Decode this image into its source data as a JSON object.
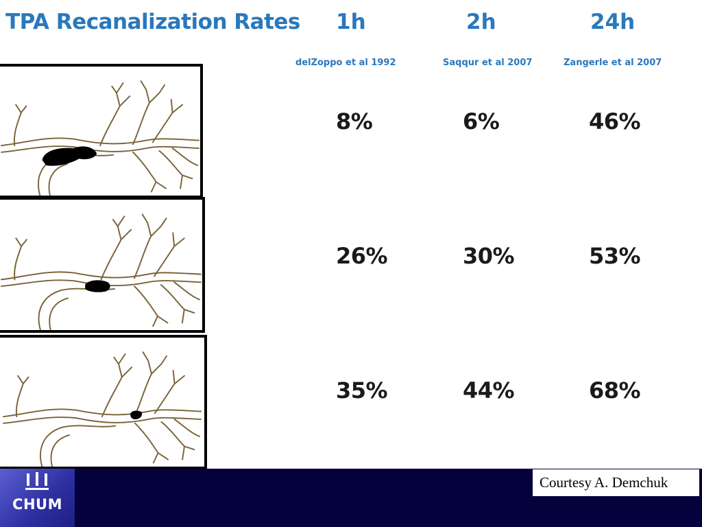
{
  "slide": {
    "title": "TPA Recanalization Rates",
    "columns": [
      {
        "time": "1h",
        "source": "delZoppo et al 1992"
      },
      {
        "time": "2h",
        "source": "Saqqur et al 2007"
      },
      {
        "time": "24h",
        "source": "Zangerle et al 2007"
      }
    ],
    "rows": [
      {
        "occlusion_site": "proximal",
        "values": [
          "8%",
          "6%",
          "46%"
        ]
      },
      {
        "occlusion_site": "middle",
        "values": [
          "26%",
          "30%",
          "53%"
        ]
      },
      {
        "occlusion_site": "distal",
        "values": [
          "35%",
          "44%",
          "68%"
        ]
      }
    ]
  },
  "footer": {
    "logo_text": "CHUM",
    "courtesy": "Courtesy A. Demchuk",
    "background_color": "#04013d"
  },
  "colors": {
    "title": "#2a78bd",
    "values": "#1a1a1a"
  }
}
